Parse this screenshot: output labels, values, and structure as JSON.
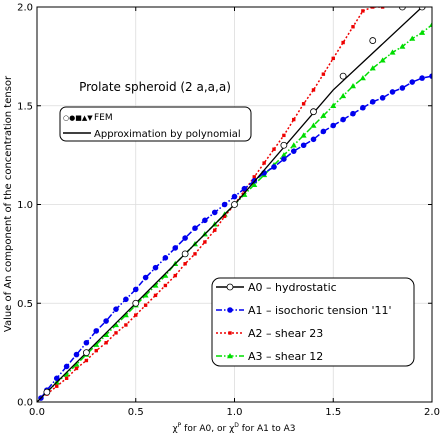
{
  "chart_data": {
    "type": "line",
    "title": "Prolate spheroid (2 a,a,a)",
    "xlabel": "χ^P for A0, or χ^D for A1 to A3",
    "xlabel_parts": {
      "chi1": "χ",
      "sup1": "P",
      "mid": " for A0, or ",
      "chi2": "χ",
      "sup2": "D",
      "end": " for A1 to A3"
    },
    "ylabel": "Value of An component of the concentration tensor",
    "xlim": [
      0,
      2
    ],
    "ylim": [
      0,
      2
    ],
    "xticks": [
      "0.0",
      "0.5",
      "1.0",
      "1.5",
      "2.0"
    ],
    "yticks": [
      "0.0",
      "0.5",
      "1.0",
      "1.5",
      "2.0"
    ],
    "xtick_values": [
      0,
      0.5,
      1,
      1.5,
      2
    ],
    "ytick_values": [
      0,
      0.5,
      1,
      1.5,
      2
    ],
    "grid": true,
    "legend_top": {
      "position": "upper-left",
      "entries": [
        {
          "label": "FEM",
          "marker_glyphs": "○●■▲▼"
        },
        {
          "label": "Approximation by polynomial"
        }
      ]
    },
    "legend_bottom": {
      "position": "lower-right",
      "entries": [
        {
          "label": "A0 – hydrostatic",
          "series": 0
        },
        {
          "label": "A1 – isochoric tension '11'",
          "series": 1
        },
        {
          "label": "A2 – shear 23",
          "series": 2
        },
        {
          "label": "A3 – shear 12",
          "series": 3
        }
      ]
    },
    "series": [
      {
        "name": "A0 – hydrostatic",
        "color": "#000000",
        "marker": "circle-open",
        "style": "solid",
        "points_x": [
          0.05,
          0.25,
          0.5,
          0.75,
          1.0,
          1.25,
          1.4,
          1.55,
          1.7,
          1.85,
          1.95
        ],
        "points_y": [
          0.05,
          0.25,
          0.5,
          0.75,
          1.0,
          1.3,
          1.47,
          1.65,
          1.83,
          2.0,
          2.0
        ],
        "curve_x": [
          0,
          0.5,
          1.0,
          1.5,
          1.95
        ],
        "curve_y": [
          0,
          0.5,
          1.0,
          1.58,
          2.0
        ]
      },
      {
        "name": "A1 – isochoric tension '11'",
        "color": "#0000ee",
        "marker": "circle-filled",
        "style": "dash-dot",
        "points_x": [
          0.02,
          0.05,
          0.1,
          0.15,
          0.2,
          0.25,
          0.3,
          0.35,
          0.4,
          0.45,
          0.5,
          0.55,
          0.6,
          0.65,
          0.7,
          0.75,
          0.8,
          0.85,
          0.9,
          0.95,
          1.0,
          1.05,
          1.1,
          1.15,
          1.2,
          1.25,
          1.3,
          1.35,
          1.4,
          1.45,
          1.5,
          1.55,
          1.6,
          1.65,
          1.7,
          1.75,
          1.8,
          1.85,
          1.9,
          1.95,
          2.0
        ],
        "points_y": [
          0.02,
          0.06,
          0.12,
          0.18,
          0.24,
          0.3,
          0.36,
          0.41,
          0.47,
          0.52,
          0.57,
          0.63,
          0.68,
          0.73,
          0.78,
          0.83,
          0.88,
          0.92,
          0.96,
          1.0,
          1.04,
          1.08,
          1.12,
          1.16,
          1.19,
          1.23,
          1.27,
          1.3,
          1.33,
          1.37,
          1.4,
          1.43,
          1.46,
          1.49,
          1.52,
          1.54,
          1.57,
          1.59,
          1.62,
          1.64,
          1.65
        ]
      },
      {
        "name": "A2 – shear 23",
        "color": "#ee0000",
        "marker": "square-filled",
        "style": "dotted",
        "points_x": [
          0.05,
          0.1,
          0.15,
          0.2,
          0.25,
          0.3,
          0.35,
          0.4,
          0.45,
          0.5,
          0.55,
          0.6,
          0.65,
          0.7,
          0.75,
          0.8,
          0.85,
          0.9,
          0.95,
          1.0,
          1.05,
          1.1,
          1.15,
          1.2,
          1.25,
          1.3,
          1.35,
          1.4,
          1.45,
          1.5,
          1.55,
          1.6,
          1.65,
          1.7,
          1.75
        ],
        "points_y": [
          0.04,
          0.08,
          0.12,
          0.17,
          0.21,
          0.26,
          0.3,
          0.35,
          0.39,
          0.44,
          0.49,
          0.54,
          0.59,
          0.64,
          0.7,
          0.75,
          0.81,
          0.87,
          0.94,
          1.0,
          1.07,
          1.14,
          1.21,
          1.28,
          1.35,
          1.43,
          1.51,
          1.58,
          1.66,
          1.74,
          1.82,
          1.9,
          1.98,
          2.0,
          2.0
        ]
      },
      {
        "name": "A3 – shear 12",
        "color": "#00dd00",
        "marker": "triangle-up",
        "style": "dash-dot",
        "points_x": [
          0.05,
          0.1,
          0.15,
          0.2,
          0.25,
          0.3,
          0.35,
          0.4,
          0.45,
          0.5,
          0.55,
          0.6,
          0.65,
          0.7,
          0.75,
          0.8,
          0.85,
          0.9,
          0.95,
          1.0,
          1.05,
          1.1,
          1.15,
          1.2,
          1.25,
          1.3,
          1.35,
          1.4,
          1.45,
          1.5,
          1.55,
          1.6,
          1.65,
          1.7,
          1.75,
          1.8,
          1.85,
          1.9,
          1.95,
          2.0
        ],
        "points_y": [
          0.05,
          0.1,
          0.14,
          0.19,
          0.24,
          0.29,
          0.34,
          0.39,
          0.44,
          0.49,
          0.54,
          0.59,
          0.64,
          0.7,
          0.75,
          0.8,
          0.85,
          0.9,
          0.95,
          1.0,
          1.05,
          1.1,
          1.15,
          1.2,
          1.25,
          1.3,
          1.35,
          1.4,
          1.45,
          1.5,
          1.55,
          1.6,
          1.64,
          1.69,
          1.73,
          1.77,
          1.8,
          1.84,
          1.87,
          1.91
        ]
      }
    ]
  }
}
